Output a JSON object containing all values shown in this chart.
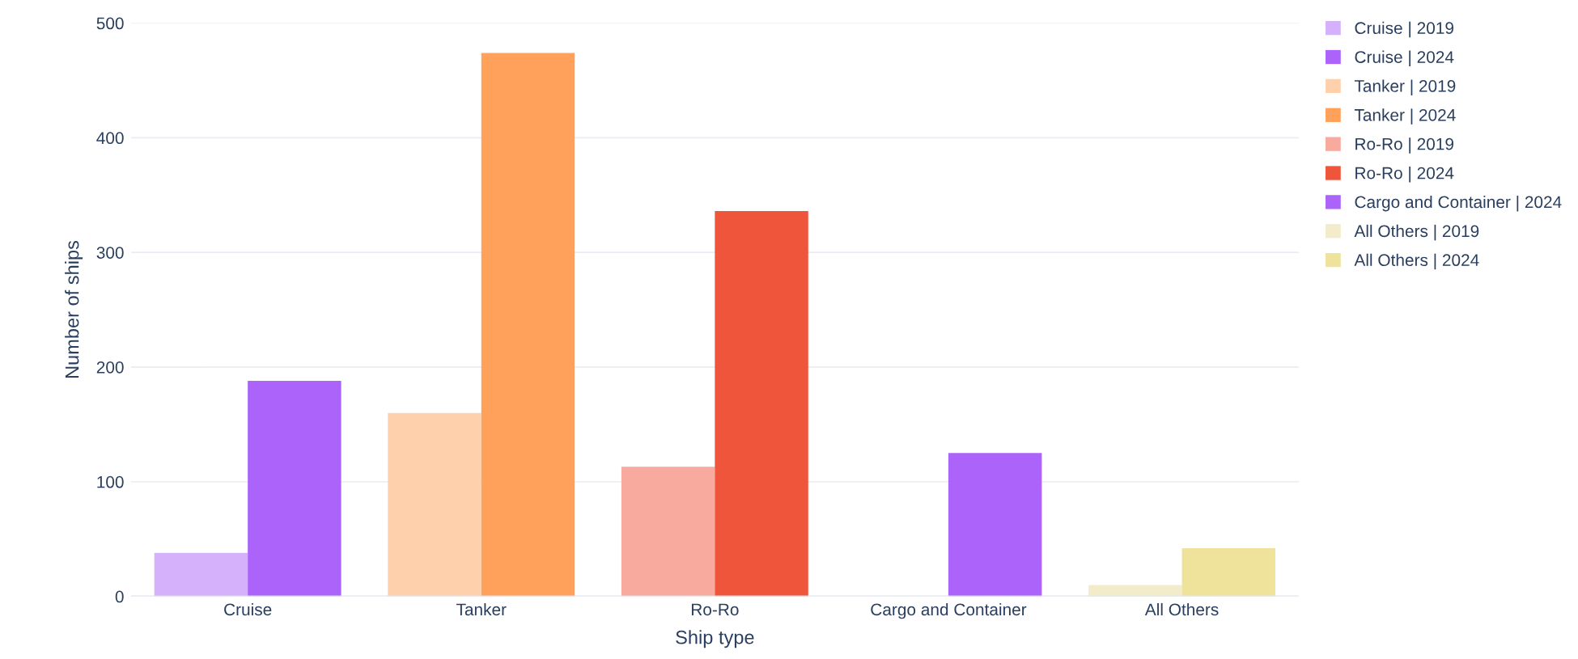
{
  "chart_data": {
    "type": "bar",
    "xlabel": "Ship type",
    "ylabel": "Number of ships",
    "categories": [
      "Cruise",
      "Tanker",
      "Ro-Ro",
      "Cargo and Container",
      "All Others"
    ],
    "series": [
      {
        "name": "Cruise | 2019",
        "color": "#d5b1fc",
        "values": [
          38,
          null,
          null,
          null,
          null
        ]
      },
      {
        "name": "Cruise | 2024",
        "color": "#ab63fa",
        "values": [
          188,
          null,
          null,
          null,
          null
        ]
      },
      {
        "name": "Tanker | 2019",
        "color": "#ffd0ac",
        "values": [
          null,
          160,
          null,
          null,
          null
        ]
      },
      {
        "name": "Tanker | 2024",
        "color": "#ffa15a",
        "values": [
          null,
          474,
          null,
          null,
          null
        ]
      },
      {
        "name": "Ro-Ro | 2019",
        "color": "#f7aa9d",
        "values": [
          null,
          null,
          113,
          null,
          null
        ]
      },
      {
        "name": "Ro-Ro | 2024",
        "color": "#ef553b",
        "values": [
          null,
          null,
          336,
          null,
          null
        ]
      },
      {
        "name": "Cargo and Container | 2024",
        "color": "#ab63fa",
        "values": [
          null,
          null,
          null,
          125,
          null
        ]
      },
      {
        "name": "All Others | 2019",
        "color": "#f3eccb",
        "values": [
          null,
          null,
          null,
          null,
          10
        ]
      },
      {
        "name": "All Others | 2024",
        "color": "#efe39c",
        "values": [
          null,
          null,
          null,
          null,
          42
        ]
      }
    ],
    "ylim": [
      0,
      500
    ],
    "yticks": [
      0,
      100,
      200,
      300,
      400,
      500
    ],
    "grid": "y",
    "legend": "top right"
  }
}
